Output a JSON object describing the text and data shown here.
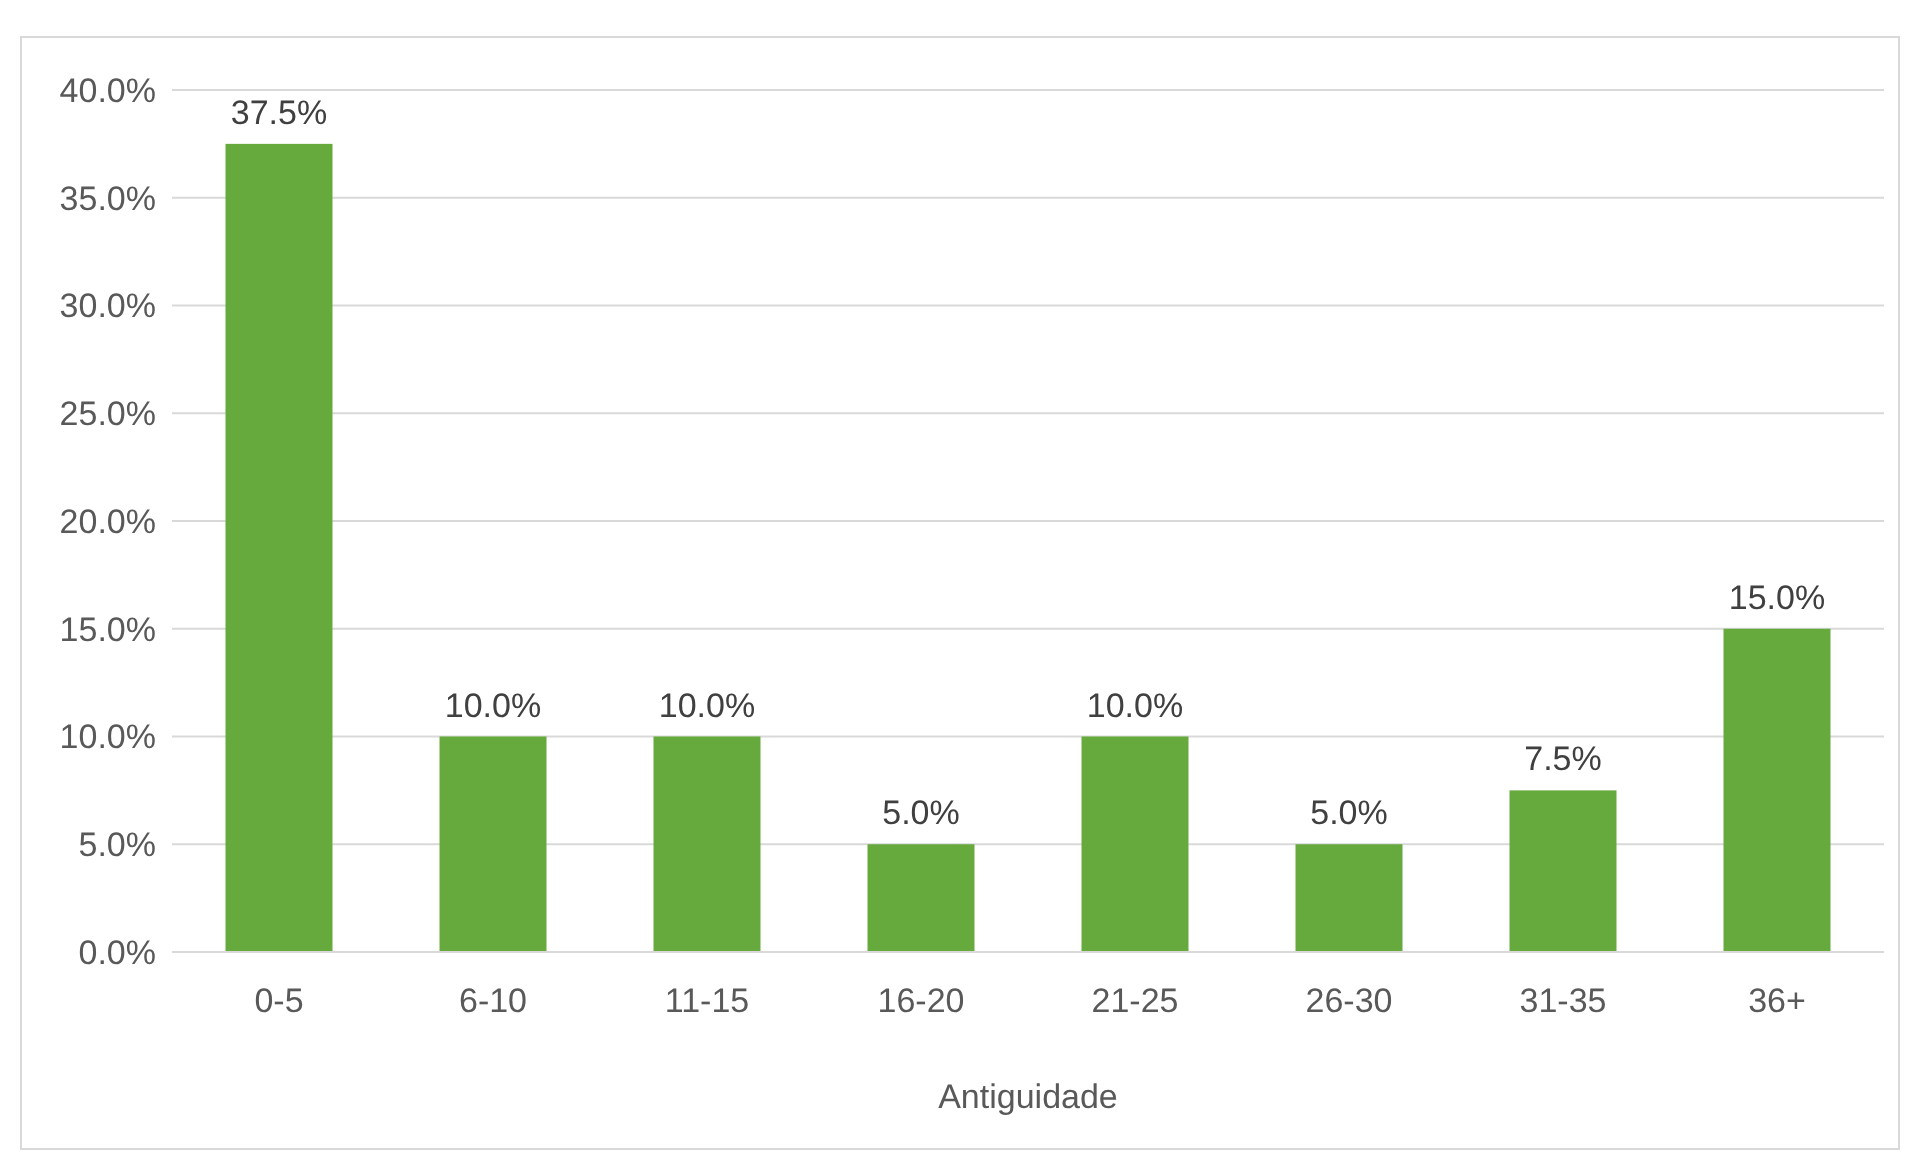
{
  "chart_data": {
    "type": "bar",
    "xlabel": "Antiguidade",
    "categories": [
      "0-5",
      "6-10",
      "11-15",
      "16-20",
      "21-25",
      "26-30",
      "31-35",
      "36+"
    ],
    "values": [
      37.5,
      10.0,
      10.0,
      5.0,
      10.0,
      5.0,
      7.5,
      15.0
    ],
    "value_labels": [
      "37.5%",
      "10.0%",
      "10.0%",
      "5.0%",
      "10.0%",
      "5.0%",
      "7.5%",
      "15.0%"
    ],
    "color": "#66a93c",
    "ylim": [
      0,
      40
    ],
    "yticks": [
      {
        "value": 0,
        "label": "0.0%"
      },
      {
        "value": 5,
        "label": "5.0%"
      },
      {
        "value": 10,
        "label": "10.0%"
      },
      {
        "value": 15,
        "label": "15.0%"
      },
      {
        "value": 20,
        "label": "20.0%"
      },
      {
        "value": 25,
        "label": "25.0%"
      },
      {
        "value": 30,
        "label": "30.0%"
      },
      {
        "value": 35,
        "label": "35.0%"
      },
      {
        "value": 40,
        "label": "40.0%"
      }
    ],
    "grid": "y"
  }
}
